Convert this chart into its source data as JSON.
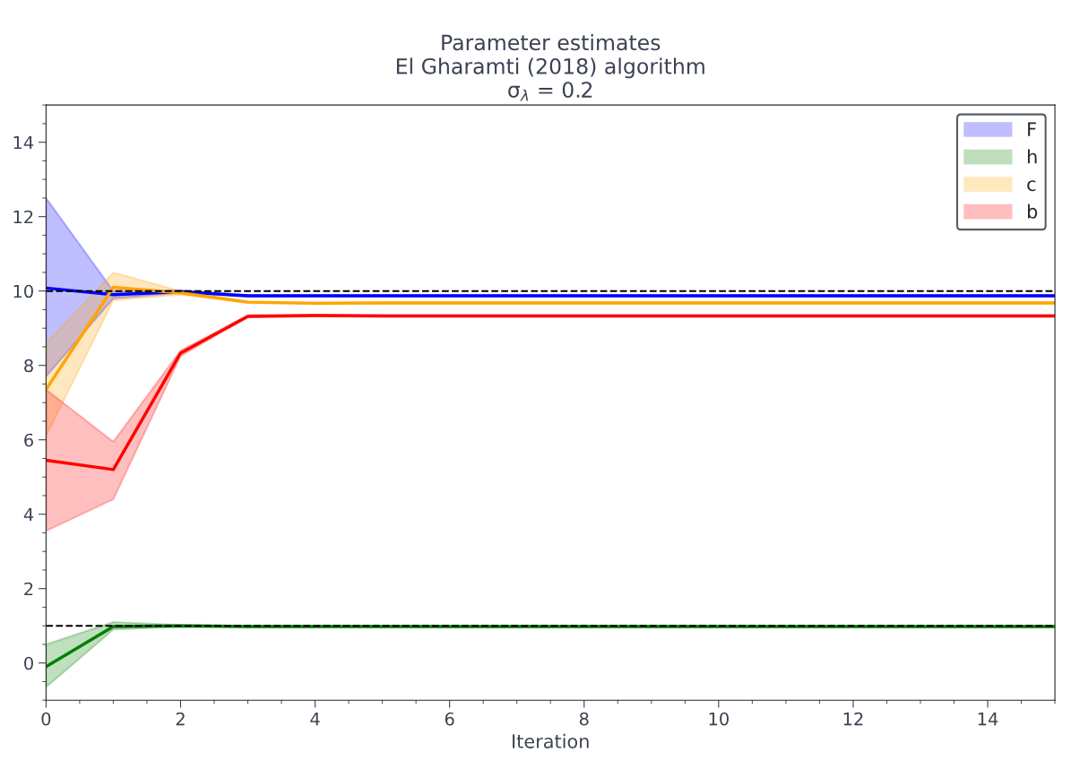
{
  "chart_data": {
    "type": "line",
    "title": "Parameter estimates\nEl Gharamti (2018) algorithm\nσ$_{λ}$ = 0.2",
    "xlabel": "Iteration",
    "x": [
      0,
      1,
      2,
      3,
      4,
      5,
      6,
      7,
      8,
      9,
      10,
      11,
      12,
      13,
      14,
      15
    ],
    "series": [
      {
        "name": "F",
        "color": "#0000ff",
        "values": [
          10.08,
          9.9,
          9.98,
          9.87,
          9.87,
          9.87,
          9.87,
          9.87,
          9.87,
          9.87,
          9.87,
          9.87,
          9.87,
          9.87,
          9.87,
          9.87
        ],
        "lower": [
          7.7,
          9.8,
          9.95,
          9.85,
          9.85,
          9.85,
          9.85,
          9.85,
          9.85,
          9.85,
          9.85,
          9.85,
          9.85,
          9.85,
          9.85,
          9.85
        ],
        "upper": [
          12.5,
          10.0,
          10.02,
          9.89,
          9.89,
          9.89,
          9.89,
          9.89,
          9.89,
          9.89,
          9.89,
          9.89,
          9.89,
          9.89,
          9.89,
          9.89
        ]
      },
      {
        "name": "h",
        "color": "#008000",
        "values": [
          -0.1,
          0.98,
          1.0,
          0.98,
          0.98,
          0.98,
          0.98,
          0.98,
          0.98,
          0.98,
          0.98,
          0.98,
          0.98,
          0.98,
          0.98,
          0.98
        ],
        "lower": [
          -0.65,
          0.9,
          0.98,
          0.96,
          0.96,
          0.96,
          0.96,
          0.96,
          0.96,
          0.96,
          0.96,
          0.96,
          0.96,
          0.96,
          0.96,
          0.96
        ],
        "upper": [
          0.5,
          1.1,
          1.02,
          1.0,
          1.0,
          1.0,
          1.0,
          1.0,
          1.0,
          1.0,
          1.0,
          1.0,
          1.0,
          1.0,
          1.0,
          1.0
        ]
      },
      {
        "name": "c",
        "color": "#ffa500",
        "values": [
          7.35,
          10.1,
          9.95,
          9.7,
          9.67,
          9.68,
          9.68,
          9.68,
          9.68,
          9.68,
          9.68,
          9.68,
          9.68,
          9.68,
          9.68,
          9.68
        ],
        "lower": [
          6.1,
          9.75,
          9.9,
          9.68,
          9.65,
          9.66,
          9.66,
          9.66,
          9.66,
          9.66,
          9.66,
          9.66,
          9.66,
          9.66,
          9.66,
          9.66
        ],
        "upper": [
          8.6,
          10.5,
          10.0,
          9.72,
          9.69,
          9.7,
          9.7,
          9.7,
          9.7,
          9.7,
          9.7,
          9.7,
          9.7,
          9.7,
          9.7,
          9.7
        ]
      },
      {
        "name": "b",
        "color": "#ff0000",
        "values": [
          5.45,
          5.2,
          8.33,
          9.32,
          9.34,
          9.33,
          9.33,
          9.33,
          9.33,
          9.33,
          9.33,
          9.33,
          9.33,
          9.33,
          9.33,
          9.33
        ],
        "lower": [
          3.55,
          4.4,
          8.25,
          9.3,
          9.32,
          9.31,
          9.31,
          9.31,
          9.31,
          9.31,
          9.31,
          9.31,
          9.31,
          9.31,
          9.31,
          9.31
        ],
        "upper": [
          7.35,
          5.95,
          8.4,
          9.35,
          9.36,
          9.35,
          9.35,
          9.35,
          9.35,
          9.35,
          9.35,
          9.35,
          9.35,
          9.35,
          9.35,
          9.35
        ]
      }
    ],
    "ref_lines": [
      {
        "axis": "y",
        "value": 10,
        "color": "#000000",
        "line_style": "dashed"
      },
      {
        "axis": "y",
        "value": 1,
        "color": "#000000",
        "line_style": "dashed"
      }
    ],
    "xlim": [
      0,
      15
    ],
    "xticks": [
      0,
      2,
      4,
      6,
      8,
      10,
      12,
      14
    ],
    "ylim": [
      -1,
      15
    ],
    "yticks": [
      0,
      2,
      4,
      6,
      8,
      10,
      12,
      14
    ],
    "legend": "top right",
    "grid": false,
    "line_style": "solid"
  }
}
